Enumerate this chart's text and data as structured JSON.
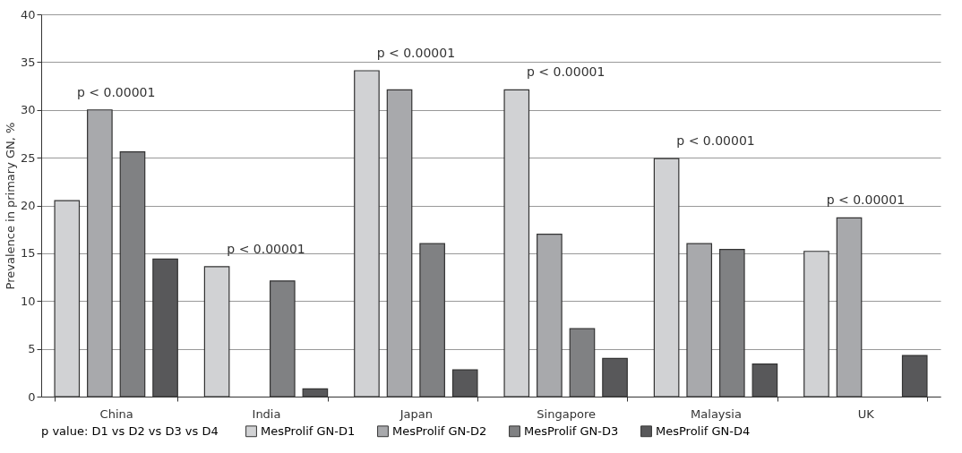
{
  "chart_data": {
    "type": "bar",
    "ylabel": "Prevalence in primary GN, %",
    "categories": [
      "China",
      "India",
      "Japan",
      "Singapore",
      "Malaysia",
      "UK"
    ],
    "series": [
      {
        "name": "MesProlif GN-D1",
        "color": "#d1d2d4",
        "values": [
          20.5,
          13.6,
          34.1,
          32.1,
          24.9,
          15.2
        ]
      },
      {
        "name": "MesProlif GN-D2",
        "color": "#a8a9ac",
        "values": [
          30.0,
          null,
          32.1,
          17.0,
          16.0,
          18.7
        ]
      },
      {
        "name": "MesProlif GN-D3",
        "color": "#808183",
        "values": [
          25.6,
          12.1,
          16.0,
          7.1,
          15.4,
          null
        ]
      },
      {
        "name": "MesProlif GN-D4",
        "color": "#58585a",
        "values": [
          14.4,
          0.8,
          2.8,
          4.0,
          3.4,
          4.3
        ]
      }
    ],
    "ylim": [
      0,
      40
    ],
    "yticks": [
      0,
      5,
      10,
      15,
      20,
      25,
      30,
      35,
      40
    ],
    "grid": "y",
    "legend": "bottom",
    "legend_title": "p value: D1 vs D2 vs D3 vs D4",
    "annotations": [
      "p < 0.00001",
      "p < 0.00001",
      "p < 0.00001",
      "p < 0.00001",
      "p < 0.00001",
      "p < 0.00001"
    ]
  }
}
